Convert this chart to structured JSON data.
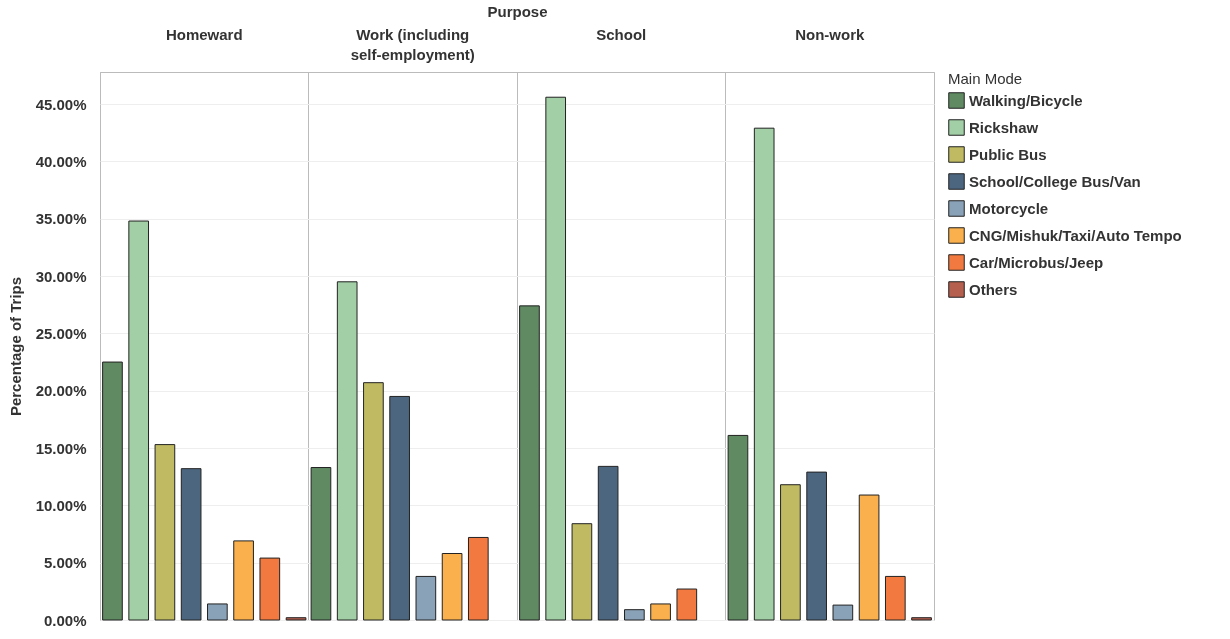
{
  "chart_data": {
    "type": "bar",
    "xlabel": "Purpose",
    "ylabel": "Percentage of Trips",
    "legend_title": "Main Mode",
    "legend": "right",
    "grid": true,
    "categories": [
      "Homeward",
      "Work (including self-employment)",
      "School",
      "Non-work"
    ],
    "ylim": [
      0,
      47.8
    ],
    "yticks": [
      {
        "value": 0,
        "label": "0.00%"
      },
      {
        "value": 5,
        "label": "5.00%"
      },
      {
        "value": 10,
        "label": "10.00%"
      },
      {
        "value": 15,
        "label": "15.00%"
      },
      {
        "value": 20,
        "label": "20.00%"
      },
      {
        "value": 25,
        "label": "25.00%"
      },
      {
        "value": 30,
        "label": "30.00%"
      },
      {
        "value": 35,
        "label": "35.00%"
      },
      {
        "value": 40,
        "label": "40.00%"
      },
      {
        "value": 45,
        "label": "45.00%"
      }
    ],
    "series": [
      {
        "name": "Walking/Bicycle",
        "color": "#5f8a62",
        "values": [
          22.5,
          13.3,
          27.4,
          16.1
        ]
      },
      {
        "name": "Rickshaw",
        "color": "#a2cfa6",
        "values": [
          34.8,
          29.5,
          45.6,
          42.9
        ]
      },
      {
        "name": "Public Bus",
        "color": "#c0bb62",
        "values": [
          15.3,
          20.7,
          8.4,
          11.8
        ]
      },
      {
        "name": "School/College Bus/Van",
        "color": "#4d6680",
        "values": [
          13.2,
          19.5,
          13.4,
          12.9
        ]
      },
      {
        "name": "Motorcycle",
        "color": "#8aa2b8",
        "values": [
          1.4,
          3.8,
          0.9,
          1.3
        ]
      },
      {
        "name": "CNG/Mishuk/Taxi/Auto Tempo",
        "color": "#f9b04d",
        "values": [
          6.9,
          5.8,
          1.4,
          10.9
        ]
      },
      {
        "name": "Car/Microbus/Jeep",
        "color": "#f27a40",
        "values": [
          5.4,
          7.2,
          2.7,
          3.8
        ]
      },
      {
        "name": "Others",
        "color": "#b5604e",
        "values": [
          0.2,
          null,
          null,
          0.2
        ]
      }
    ]
  }
}
